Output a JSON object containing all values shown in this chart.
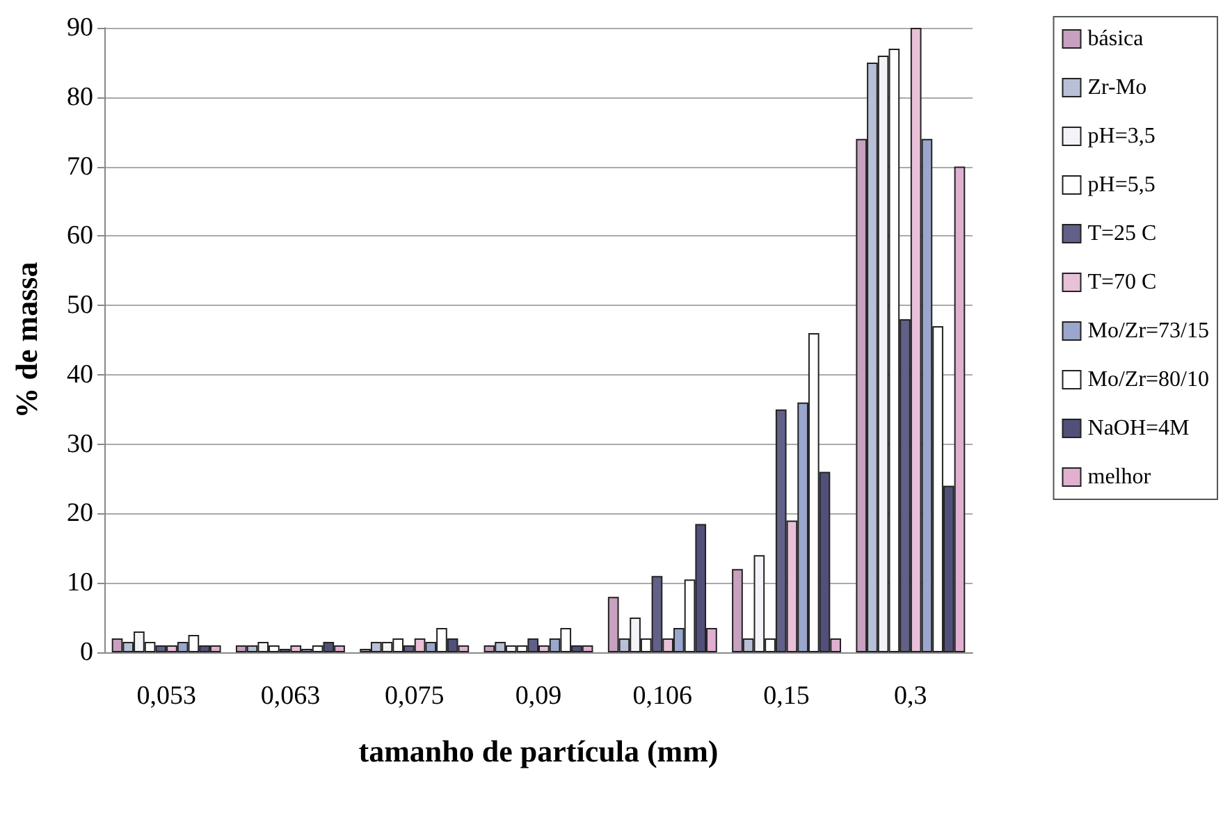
{
  "chart_data": {
    "type": "bar",
    "xlabel": "tamanho de partícula (mm)",
    "ylabel": "% de massa",
    "categories": [
      "0,053",
      "0,063",
      "0,075",
      "0,09",
      "0,106",
      "0,15",
      "0,3"
    ],
    "series": [
      {
        "name": "básica",
        "color": "#c8a0c0",
        "values": [
          2,
          1,
          0.5,
          1,
          8,
          12,
          74
        ]
      },
      {
        "name": "Zr-Mo",
        "color": "#b8c0d8",
        "values": [
          1.5,
          1,
          1.5,
          1.5,
          2,
          2,
          85
        ]
      },
      {
        "name": "pH=3,5",
        "color": "#f4f4f8",
        "values": [
          3,
          1.5,
          1.5,
          1,
          5,
          14,
          86
        ]
      },
      {
        "name": "pH=5,5",
        "color": "#ffffff",
        "values": [
          1.5,
          1,
          2,
          1,
          2,
          2,
          87
        ]
      },
      {
        "name": "T=25 C",
        "color": "#606088",
        "values": [
          1,
          0.5,
          1,
          2,
          11,
          35,
          48
        ]
      },
      {
        "name": "T=70 C",
        "color": "#e8c0d8",
        "values": [
          1,
          1,
          2,
          1,
          2,
          19,
          90
        ]
      },
      {
        "name": "Mo/Zr=73/15",
        "color": "#9aa6cc",
        "values": [
          1.5,
          0.5,
          1.5,
          2,
          3.5,
          36,
          74
        ]
      },
      {
        "name": "Mo/Zr=80/10",
        "color": "#ffffff",
        "values": [
          2.5,
          1,
          3.5,
          3.5,
          10.5,
          46,
          47
        ]
      },
      {
        "name": "NaOH=4M",
        "color": "#505078",
        "values": [
          1,
          1.5,
          2,
          1,
          18.5,
          26,
          24
        ]
      },
      {
        "name": "melhor",
        "color": "#e0b0d0",
        "values": [
          1,
          1,
          1,
          1,
          3.5,
          2,
          70
        ]
      }
    ],
    "ylim": [
      0,
      90
    ],
    "yticks": [
      0,
      10,
      20,
      30,
      40,
      50,
      60,
      70,
      80,
      90
    ],
    "grid": "y",
    "legend": "right"
  }
}
